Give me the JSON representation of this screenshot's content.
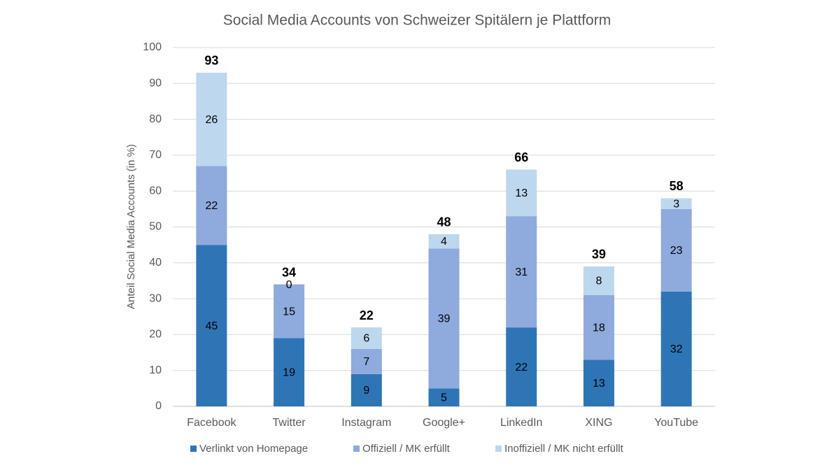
{
  "chart_data": {
    "type": "stacked-bar",
    "title": "Social Media Accounts von Schweizer Spitälern je Plattform",
    "y_label": "Anteil Social Media Accounts (in %)",
    "categories": [
      "Facebook",
      "Twitter",
      "Instagram",
      "Google+",
      "LinkedIn",
      "XING",
      "YouTube"
    ],
    "series": [
      {
        "name": "Verlinkt von Homepage",
        "color": "#2e75b6",
        "values": [
          45,
          19,
          9,
          5,
          22,
          13,
          32
        ]
      },
      {
        "name": "Offiziell / MK erfüllt",
        "color": "#8faadc",
        "values": [
          22,
          15,
          7,
          39,
          31,
          18,
          23
        ]
      },
      {
        "name": "Inoffiziell / MK nicht erfüllt",
        "color": "#bdd7ee",
        "values": [
          26,
          0,
          6,
          4,
          13,
          8,
          3
        ]
      }
    ],
    "totals": [
      93,
      34,
      22,
      48,
      66,
      39,
      58
    ],
    "ylim": [
      0,
      100
    ],
    "yticks": [
      0,
      10,
      20,
      30,
      40,
      50,
      60,
      70,
      80,
      90,
      100
    ],
    "grid": true,
    "legend": "bottom"
  }
}
